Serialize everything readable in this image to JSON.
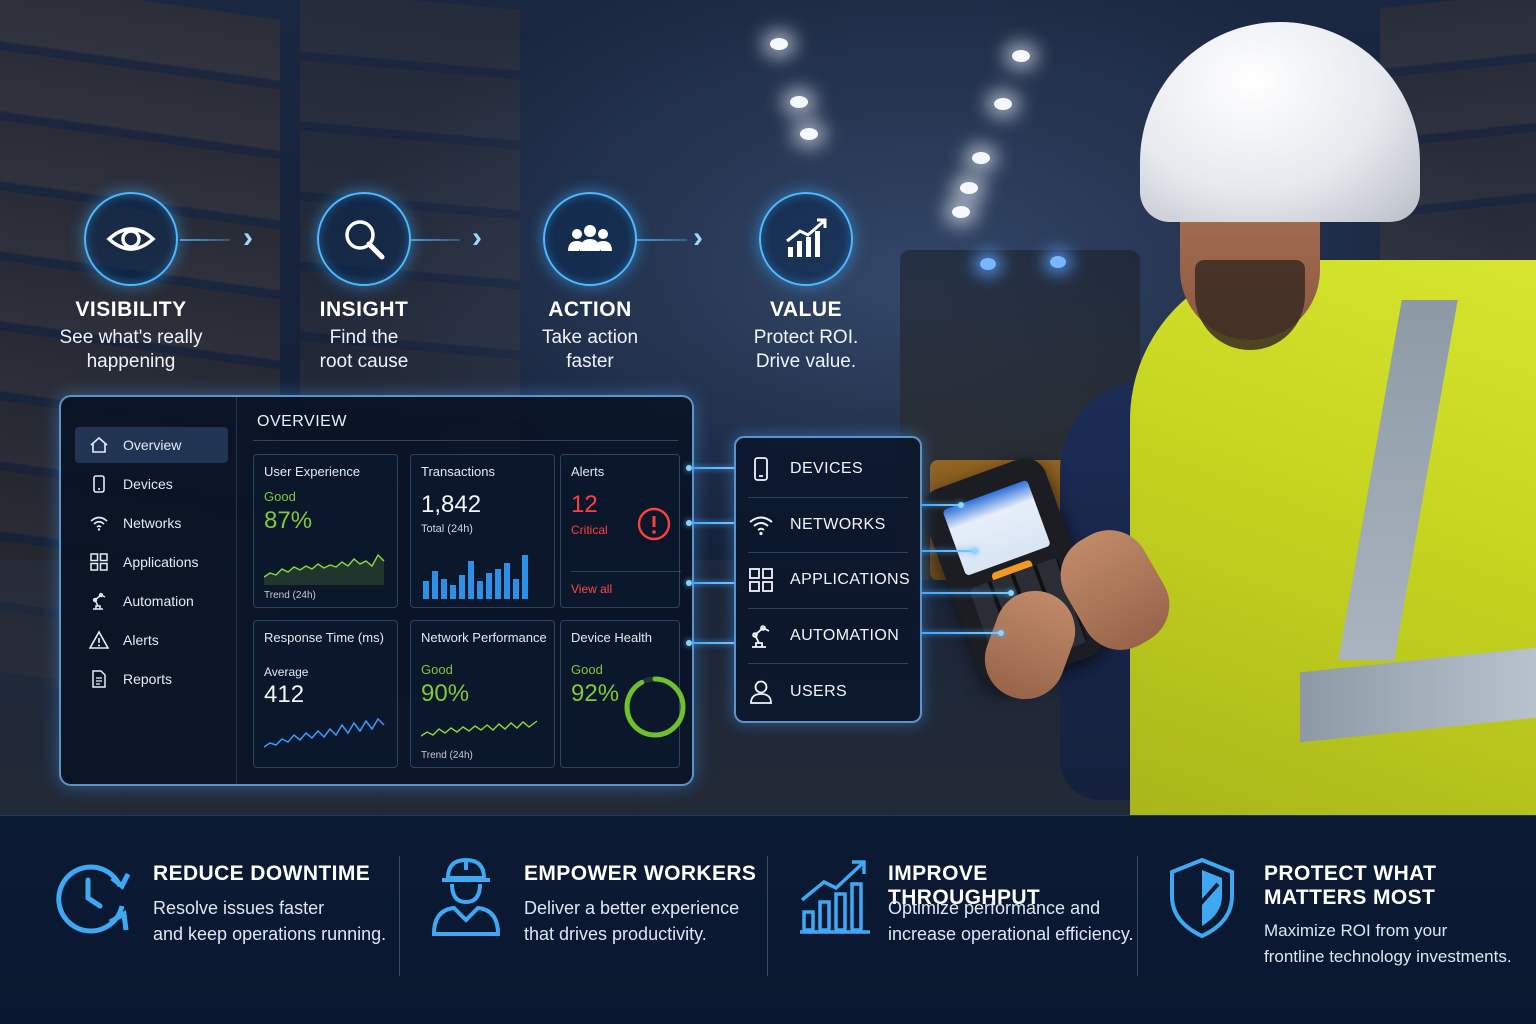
{
  "flow": [
    {
      "title": "VISIBILITY",
      "line1": "See what's really",
      "line2": "happening",
      "icon": "eye-icon"
    },
    {
      "title": "INSIGHT",
      "line1": "Find the",
      "line2": "root cause",
      "icon": "magnifier-icon"
    },
    {
      "title": "ACTION",
      "line1": "Take action",
      "line2": "faster",
      "icon": "team-icon"
    },
    {
      "title": "VALUE",
      "line1": "Protect ROI.",
      "line2": "Drive value.",
      "icon": "growth-chart-icon"
    }
  ],
  "dashboard": {
    "title": "OVERVIEW",
    "nav": [
      {
        "label": "Overview",
        "icon": "home-icon",
        "active": true
      },
      {
        "label": "Devices",
        "icon": "device-icon"
      },
      {
        "label": "Networks",
        "icon": "wifi-icon"
      },
      {
        "label": "Applications",
        "icon": "apps-grid-icon"
      },
      {
        "label": "Automation",
        "icon": "robot-arm-icon"
      },
      {
        "label": "Alerts",
        "icon": "warning-icon"
      },
      {
        "label": "Reports",
        "icon": "report-icon"
      }
    ],
    "cards": {
      "ux": {
        "title": "User Experience",
        "status": "Good",
        "value": "87%",
        "footer": "Trend (24h)"
      },
      "tx": {
        "title": "Transactions",
        "value": "1,842",
        "sub": "Total (24h)"
      },
      "alerts": {
        "title": "Alerts",
        "value": "12",
        "status": "Critical",
        "link": "View all"
      },
      "rt": {
        "title": "Response Time (ms)",
        "sub": "Average",
        "value": "412"
      },
      "np": {
        "title": "Network Performance",
        "status": "Good",
        "value": "90%",
        "footer": "Trend (24h)"
      },
      "dh": {
        "title": "Device Health",
        "status": "Good",
        "value": "92%",
        "gauge": 0.92
      }
    }
  },
  "categories": [
    {
      "label": "DEVICES",
      "icon": "device-icon"
    },
    {
      "label": "NETWORKS",
      "icon": "wifi-icon"
    },
    {
      "label": "APPLICATIONS",
      "icon": "apps-grid-icon"
    },
    {
      "label": "AUTOMATION",
      "icon": "robot-arm-icon"
    },
    {
      "label": "USERS",
      "icon": "user-icon"
    }
  ],
  "benefits": [
    {
      "title": "REDUCE DOWNTIME",
      "line1": "Resolve issues faster",
      "line2": "and keep operations running.",
      "icon": "clock-refresh-icon"
    },
    {
      "title": "EMPOWER WORKERS",
      "line1": "Deliver a better experience",
      "line2": "that drives productivity.",
      "icon": "worker-icon"
    },
    {
      "title": "IMPROVE THROUGHPUT",
      "line1": "Optimize performance and",
      "line2": "increase operational efficiency.",
      "icon": "bar-growth-icon"
    },
    {
      "title": "PROTECT WHAT",
      "title2": "MATTERS MOST",
      "line1": "Maximize ROI from your",
      "line2": "frontline technology investments.",
      "icon": "shield-icon"
    }
  ],
  "colors": {
    "accent": "#4fb8ff",
    "good": "#7fc93b",
    "critical": "#ff3f3f",
    "band": "#0b1a33"
  }
}
